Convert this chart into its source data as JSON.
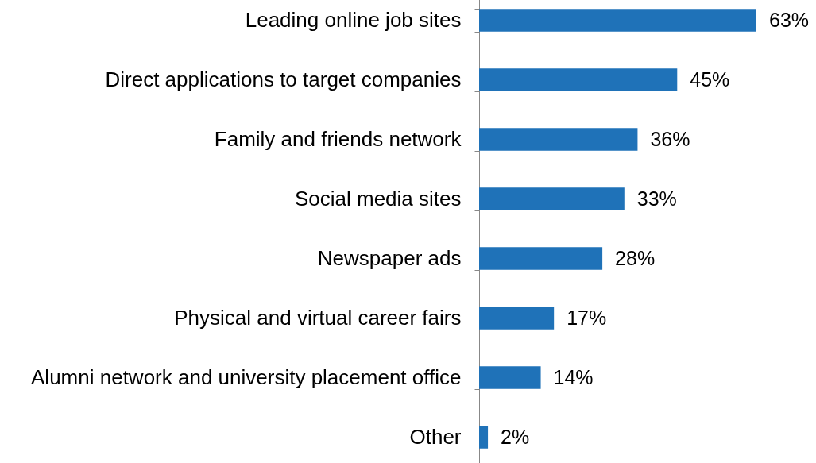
{
  "chart_data": {
    "type": "bar",
    "orientation": "horizontal",
    "categories": [
      "Leading online job sites",
      "Direct applications to target companies",
      "Family and friends network",
      "Social media sites",
      "Newspaper ads",
      "Physical and virtual career fairs",
      "Alumni network and university placement office",
      "Other"
    ],
    "values": [
      63,
      45,
      36,
      33,
      28,
      17,
      14,
      2
    ],
    "value_labels": [
      "63%",
      "45%",
      "36%",
      "33%",
      "28%",
      "17%",
      "14%",
      "2%"
    ],
    "color": "#1f72b8",
    "grid": false
  }
}
